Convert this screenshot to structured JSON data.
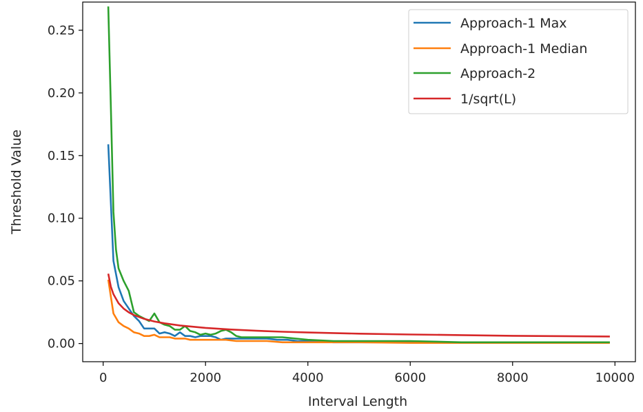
{
  "chart_data": {
    "type": "line",
    "xlabel": "Interval Length",
    "ylabel": "Threshold Value",
    "xlim": [
      -400,
      10400
    ],
    "ylim": [
      -0.0145,
      0.2725
    ],
    "xticks": [
      0,
      2000,
      4000,
      6000,
      8000,
      10000
    ],
    "xtick_labels": [
      "0",
      "2000",
      "4000",
      "6000",
      "8000",
      "10000"
    ],
    "yticks": [
      0.0,
      0.05,
      0.1,
      0.15,
      0.2,
      0.25
    ],
    "ytick_labels": [
      "0.00",
      "0.05",
      "0.10",
      "0.15",
      "0.20",
      "0.25"
    ],
    "grid": false,
    "legend_position": "top-right",
    "series": [
      {
        "name": "Approach-1 Max",
        "color": "#1f77b4",
        "x": [
          100,
          200,
          300,
          400,
          500,
          600,
          700,
          800,
          900,
          1000,
          1100,
          1200,
          1300,
          1400,
          1500,
          1600,
          1700,
          1800,
          1900,
          2000,
          2100,
          2200,
          2300,
          2400,
          2500,
          2600,
          2700,
          2800,
          2900,
          3000,
          3200,
          3400,
          3600,
          3800,
          4000,
          4500,
          5000,
          6000,
          7000,
          8000,
          9000,
          9900
        ],
        "y": [
          0.159,
          0.066,
          0.045,
          0.034,
          0.028,
          0.022,
          0.018,
          0.012,
          0.012,
          0.012,
          0.008,
          0.009,
          0.008,
          0.006,
          0.009,
          0.006,
          0.006,
          0.005,
          0.006,
          0.006,
          0.006,
          0.005,
          0.003,
          0.004,
          0.004,
          0.004,
          0.004,
          0.004,
          0.004,
          0.004,
          0.004,
          0.003,
          0.003,
          0.002,
          0.002,
          0.001,
          0.001,
          0.001,
          0.001,
          0.001,
          0.001,
          0.001
        ]
      },
      {
        "name": "Approach-1 Median",
        "color": "#ff7f0e",
        "x": [
          100,
          200,
          300,
          400,
          500,
          600,
          700,
          800,
          900,
          1000,
          1100,
          1200,
          1300,
          1400,
          1500,
          1600,
          1700,
          1800,
          1900,
          2000,
          2200,
          2400,
          2600,
          2800,
          3000,
          3200,
          3500,
          4000,
          4500,
          5000,
          6000,
          7000,
          8000,
          9000,
          9900
        ],
        "y": [
          0.051,
          0.024,
          0.017,
          0.014,
          0.012,
          0.009,
          0.008,
          0.006,
          0.006,
          0.007,
          0.005,
          0.005,
          0.005,
          0.004,
          0.004,
          0.004,
          0.003,
          0.003,
          0.003,
          0.003,
          0.003,
          0.003,
          0.002,
          0.002,
          0.002,
          0.002,
          0.001,
          0.001,
          0.001,
          0.001,
          0.0005,
          0.0005,
          0.0005,
          0.0005,
          0.0005
        ]
      },
      {
        "name": "Approach-2",
        "color": "#2ca02c",
        "x": [
          100,
          150,
          200,
          250,
          300,
          400,
          500,
          600,
          700,
          800,
          900,
          1000,
          1100,
          1200,
          1300,
          1400,
          1500,
          1600,
          1700,
          1800,
          1900,
          2000,
          2100,
          2200,
          2300,
          2400,
          2500,
          2600,
          2700,
          2800,
          3000,
          3200,
          3500,
          4000,
          4500,
          5000,
          6000,
          7000,
          8000,
          9000,
          9900
        ],
        "y": [
          0.269,
          0.19,
          0.105,
          0.075,
          0.06,
          0.05,
          0.042,
          0.025,
          0.022,
          0.02,
          0.018,
          0.024,
          0.017,
          0.015,
          0.014,
          0.011,
          0.011,
          0.014,
          0.01,
          0.009,
          0.007,
          0.008,
          0.007,
          0.008,
          0.01,
          0.011,
          0.009,
          0.006,
          0.005,
          0.005,
          0.005,
          0.005,
          0.005,
          0.003,
          0.002,
          0.002,
          0.002,
          0.001,
          0.001,
          0.001,
          0.001
        ]
      },
      {
        "name": "1/sqrt(L)",
        "color": "#d62728",
        "x": [
          100,
          150,
          200,
          300,
          400,
          500,
          600,
          800,
          1000,
          1200,
          1500,
          2000,
          2500,
          3000,
          3500,
          4000,
          5000,
          6000,
          7000,
          8000,
          9000,
          9900
        ],
        "y": [
          0.0557,
          0.0455,
          0.0394,
          0.0322,
          0.0279,
          0.0249,
          0.0227,
          0.0197,
          0.0176,
          0.0161,
          0.0144,
          0.0125,
          0.0112,
          0.0102,
          0.0094,
          0.0088,
          0.0079,
          0.0072,
          0.0067,
          0.0062,
          0.0059,
          0.0056
        ]
      }
    ]
  }
}
